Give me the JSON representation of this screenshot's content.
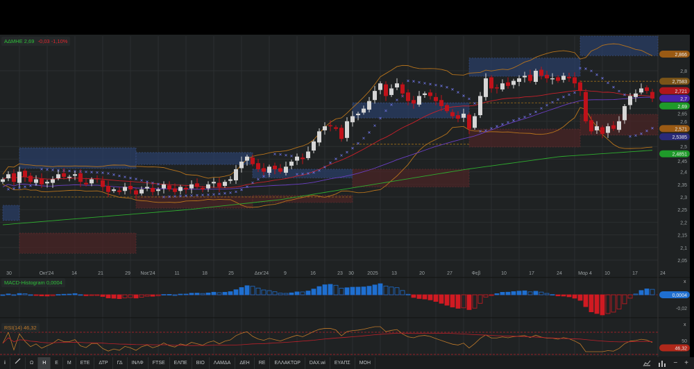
{
  "header": {
    "symbol": "ΑΔΜΗΕ",
    "last": "2,69",
    "change": "-0,03",
    "change_pct": "-1,10%"
  },
  "colors": {
    "up": "#d6d6d6",
    "down": "#c0121a",
    "bb": "#b8741c",
    "ma_fast": "#c8202a",
    "ma_mid": "#6a3fc4",
    "ma_long": "#2fae2f",
    "sar": "#6a70d8",
    "macd_pos": "#1f6fd0",
    "macd_neg": "#d01a22",
    "rsi": "#c07a2a",
    "rsi_ma": "#c0202a",
    "zone_blue": "#2a3d66",
    "zone_red": "#4a2426"
  },
  "macd": {
    "label": "MACD-Histogram",
    "value": "0,0004",
    "tick": "-0,02",
    "close": "x"
  },
  "rsi": {
    "label": "RSI(14)",
    "value": "46,32",
    "value_tag": "46,32",
    "tick": "50",
    "close": "x"
  },
  "price_tags": [
    {
      "text": "2,866",
      "color": "#9a5a14",
      "price": 2.866
    },
    {
      "text": "2,7583",
      "color": "#7a5418",
      "price": 2.7583
    },
    {
      "text": "2,721",
      "color": "#b0161c",
      "price": 2.721
    },
    {
      "text": "2,7",
      "color": "#4a22a8",
      "price": 2.705
    },
    {
      "text": "2,69",
      "color": "#1f9a2a",
      "price": 2.69
    },
    {
      "text": "2,571",
      "color": "#9a5a14",
      "price": 2.571
    },
    {
      "text": "2,5385",
      "color": "#2a2a78",
      "price": 2.5385
    },
    {
      "text": "2,4851",
      "color": "#1f9a2a",
      "price": 2.4851
    }
  ],
  "chart_data": {
    "type": "candlestick",
    "ylim": [
      2.02,
      2.95
    ],
    "yticks": [
      "2,05",
      "2,1",
      "2,15",
      "2,2",
      "2,25",
      "2,3",
      "2,35",
      "2,4",
      "2,45",
      "2,5",
      "2,6",
      "2,65",
      "2,8"
    ],
    "ytick_values": [
      2.05,
      2.1,
      2.15,
      2.2,
      2.25,
      2.3,
      2.35,
      2.4,
      2.45,
      2.5,
      2.6,
      2.65,
      2.8
    ],
    "xticks": [
      "30",
      "Οκτ'24",
      "14",
      "21",
      "29",
      "Νοε'24",
      "11",
      "18",
      "25",
      "Δεκ'24",
      "9",
      "16",
      "23",
      "30",
      "2025",
      "13",
      "20",
      "27",
      "Φεβ",
      "10",
      "17",
      "24",
      "Μαρ 4",
      "10",
      "17",
      "24"
    ],
    "grid": true,
    "closes": [
      2.37,
      2.39,
      2.36,
      2.4,
      2.38,
      2.36,
      2.37,
      2.35,
      2.36,
      2.37,
      2.39,
      2.38,
      2.38,
      2.39,
      2.36,
      2.35,
      2.37,
      2.37,
      2.34,
      2.32,
      2.33,
      2.32,
      2.34,
      2.33,
      2.31,
      2.33,
      2.34,
      2.32,
      2.33,
      2.35,
      2.33,
      2.32,
      2.34,
      2.33,
      2.35,
      2.34,
      2.33,
      2.35,
      2.36,
      2.34,
      2.36,
      2.37,
      2.41,
      2.44,
      2.46,
      2.43,
      2.41,
      2.4,
      2.42,
      2.41,
      2.4,
      2.42,
      2.44,
      2.46,
      2.45,
      2.48,
      2.52,
      2.56,
      2.58,
      2.58,
      2.57,
      2.53,
      2.6,
      2.62,
      2.63,
      2.65,
      2.68,
      2.72,
      2.75,
      2.7,
      2.73,
      2.75,
      2.71,
      2.68,
      2.67,
      2.7,
      2.71,
      2.7,
      2.68,
      2.66,
      2.64,
      2.62,
      2.61,
      2.63,
      2.57,
      2.62,
      2.7,
      2.77,
      2.73,
      2.73,
      2.75,
      2.74,
      2.76,
      2.77,
      2.78,
      2.76,
      2.8,
      2.78,
      2.77,
      2.77,
      2.76,
      2.78,
      2.77,
      2.75,
      2.72,
      2.6,
      2.56,
      2.58,
      2.55,
      2.58,
      2.57,
      2.6,
      2.66,
      2.7,
      2.71,
      2.73,
      2.72,
      2.69
    ],
    "ma_long": [
      2.19,
      2.22,
      2.25,
      2.29,
      2.35,
      2.41,
      2.46,
      2.485
    ],
    "zones": [
      {
        "kind": "blue",
        "from": 0,
        "to": 3,
        "low": 2.207,
        "high": 2.267
      },
      {
        "kind": "red",
        "from": 3,
        "to": 24,
        "low": 2.077,
        "high": 2.157
      },
      {
        "kind": "blue",
        "from": 3,
        "to": 24,
        "low": 2.413,
        "high": 2.495
      },
      {
        "kind": "blue",
        "from": 24,
        "to": 45,
        "low": 2.429,
        "high": 2.476
      },
      {
        "kind": "red",
        "from": 24,
        "to": 45,
        "low": 2.256,
        "high": 2.303
      },
      {
        "kind": "blue",
        "from": 45,
        "to": 63,
        "low": 2.376,
        "high": 2.41
      },
      {
        "kind": "red",
        "from": 45,
        "to": 63,
        "low": 2.278,
        "high": 2.306
      },
      {
        "kind": "red",
        "from": 63,
        "to": 84,
        "low": 2.34,
        "high": 2.41
      },
      {
        "kind": "blue",
        "from": 63,
        "to": 84,
        "low": 2.613,
        "high": 2.673
      },
      {
        "kind": "blue",
        "from": 84,
        "to": 104,
        "low": 2.778,
        "high": 2.85
      },
      {
        "kind": "red",
        "from": 84,
        "to": 104,
        "low": 2.498,
        "high": 2.569
      },
      {
        "kind": "blue",
        "from": 104,
        "to": 118,
        "low": 2.86,
        "high": 2.937
      },
      {
        "kind": "red",
        "from": 104,
        "to": 118,
        "low": 2.545,
        "high": 2.627
      }
    ],
    "levels": [
      {
        "price": 2.3,
        "from": 3,
        "to": 63
      },
      {
        "price": 2.509,
        "from": 63,
        "to": 84
      },
      {
        "price": 2.673,
        "from": 84,
        "to": 104
      },
      {
        "price": 2.7583,
        "from": 104,
        "to": 118
      }
    ]
  },
  "toolbar": {
    "items": [
      "Ω",
      "Η",
      "Ε",
      "Μ",
      "ΕΤΕ",
      "ΔΤΡ",
      "ΓΔ",
      "ΙΝΛΦ",
      "FTSE",
      "ΕΛΠΕ",
      "ΒΙΟ",
      "ΛΑΜΔΑ",
      "ΔΕΗ",
      "RE",
      "ΕΛΛΑΚΤΩΡ",
      "DAX.wi",
      "ΕΥΑΠΣ",
      "ΜΟΗ"
    ],
    "active": "Η",
    "info": "i",
    "minus": "−",
    "plus": "+"
  }
}
